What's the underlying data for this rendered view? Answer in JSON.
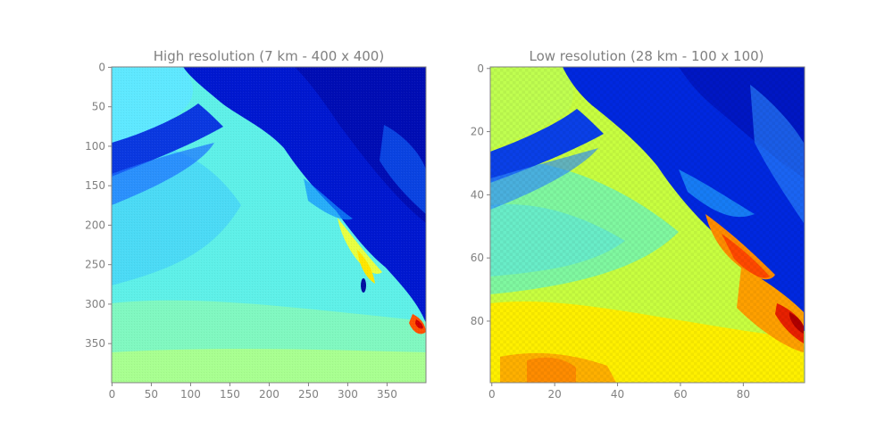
{
  "chart_data": [
    {
      "type": "heatmap",
      "title": "High resolution (7 km - 400 x 400)",
      "xlabel": "",
      "ylabel": "",
      "grid_size": [
        400,
        400
      ],
      "xlim": [
        0,
        400
      ],
      "ylim": [
        400,
        0
      ],
      "x_ticks": [
        0,
        50,
        100,
        150,
        200,
        250,
        300,
        350
      ],
      "y_ticks": [
        0,
        50,
        100,
        150,
        200,
        250,
        300,
        350
      ],
      "colormap": "jet",
      "grid": false
    },
    {
      "type": "heatmap",
      "title": "Low resolution (28 km - 100 x 100)",
      "xlabel": "",
      "ylabel": "",
      "grid_size": [
        100,
        100
      ],
      "xlim": [
        0,
        100
      ],
      "ylim": [
        100,
        0
      ],
      "x_ticks": [
        0,
        20,
        40,
        60,
        80
      ],
      "y_ticks": [
        0,
        20,
        40,
        60,
        80
      ],
      "colormap": "jet",
      "grid": false
    }
  ],
  "colors": {
    "text": "#808080",
    "axes": "#808080",
    "deep_blue": "#0010c8",
    "blue": "#0050ff",
    "cyan": "#16e8ff",
    "light_cyan": "#7cf8d8",
    "yellow": "#ffee00",
    "orange": "#ff9a00",
    "red": "#e02000"
  }
}
